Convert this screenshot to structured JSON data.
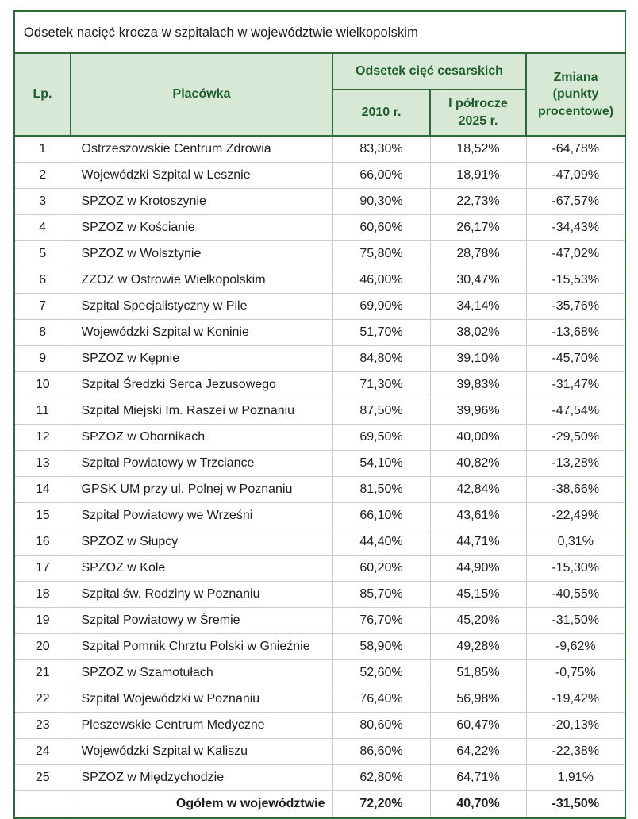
{
  "title": "Odsetek nacięć krocza w szpitalach w województwie wielkopolskim",
  "table": {
    "headers": {
      "lp": "Lp.",
      "placowka": "Placówka",
      "group": "Odsetek cięć cesarskich",
      "y2010": "2010 r.",
      "y2025": "I półrocze 2025 r.",
      "zmiana": "Zmiana (punkty procentowe)"
    }
  },
  "chart_data": {
    "type": "table",
    "title": "Odsetek nacięć krocza w szpitalach w województwie wielkopolskim",
    "column_group": {
      "label": "Odsetek cięć cesarskich",
      "spans": [
        "2010 r.",
        "I półrocze 2025 r."
      ]
    },
    "columns": [
      "Lp.",
      "Placówka",
      "2010 r.",
      "I półrocze 2025 r.",
      "Zmiana (punkty procentowe)"
    ],
    "rows": [
      [
        "1",
        "Ostrzeszowskie Centrum Zdrowia",
        "83,30%",
        "18,52%",
        "-64,78%"
      ],
      [
        "2",
        "Wojewódzki Szpital w Lesznie",
        "66,00%",
        "18,91%",
        "-47,09%"
      ],
      [
        "3",
        "SPZOZ w Krotoszynie",
        "90,30%",
        "22,73%",
        "-67,57%"
      ],
      [
        "4",
        "SPZOZ w Kościanie",
        "60,60%",
        "26,17%",
        "-34,43%"
      ],
      [
        "5",
        "SPZOZ w Wolsztynie",
        "75,80%",
        "28,78%",
        "-47,02%"
      ],
      [
        "6",
        "ZZOZ w Ostrowie Wielkopolskim",
        "46,00%",
        "30,47%",
        "-15,53%"
      ],
      [
        "7",
        "Szpital Specjalistyczny w Pile",
        "69,90%",
        "34,14%",
        "-35,76%"
      ],
      [
        "8",
        "Wojewódzki Szpital w Koninie",
        "51,70%",
        "38,02%",
        "-13,68%"
      ],
      [
        "9",
        "SPZOZ w Kępnie",
        "84,80%",
        "39,10%",
        "-45,70%"
      ],
      [
        "10",
        "Szpital Średzki Serca Jezusowego",
        "71,30%",
        "39,83%",
        "-31,47%"
      ],
      [
        "11",
        "Szpital Miejski Im. Raszei w Poznaniu",
        "87,50%",
        "39,96%",
        "-47,54%"
      ],
      [
        "12",
        "SPZOZ w Obornikach",
        "69,50%",
        "40,00%",
        "-29,50%"
      ],
      [
        "13",
        "Szpital Powiatowy w Trzciance",
        "54,10%",
        "40,82%",
        "-13,28%"
      ],
      [
        "14",
        "GPSK UM przy ul. Polnej w Poznaniu",
        "81,50%",
        "42,84%",
        "-38,66%"
      ],
      [
        "15",
        "Szpital Powiatowy we Wrześni",
        "66,10%",
        "43,61%",
        "-22,49%"
      ],
      [
        "16",
        "SPZOZ w Słupcy",
        "44,40%",
        "44,71%",
        "0,31%"
      ],
      [
        "17",
        "SPZOZ w Kole",
        "60,20%",
        "44,90%",
        "-15,30%"
      ],
      [
        "18",
        "Szpital św. Rodziny w Poznaniu",
        "85,70%",
        "45,15%",
        "-40,55%"
      ],
      [
        "19",
        "Szpital Powiatowy w Śremie",
        "76,70%",
        "45,20%",
        "-31,50%"
      ],
      [
        "20",
        "Szpital Pomnik Chrztu Polski w Gnieźnie",
        "58,90%",
        "49,28%",
        "-9,62%"
      ],
      [
        "21",
        "SPZOZ w Szamotułach",
        "52,60%",
        "51,85%",
        "-0,75%"
      ],
      [
        "22",
        "Szpital Wojewódzki w Poznaniu",
        "76,40%",
        "56,98%",
        "-19,42%"
      ],
      [
        "23",
        "Pleszewskie Centrum Medyczne",
        "80,60%",
        "60,47%",
        "-20,13%"
      ],
      [
        "24",
        "Wojewódzki Szpital w Kaliszu",
        "86,60%",
        "64,22%",
        "-22,38%"
      ],
      [
        "25",
        "SPZOZ w Międzychodzie",
        "62,80%",
        "64,71%",
        "1,91%"
      ]
    ],
    "total_row": [
      "",
      "Ogółem w województwie",
      "72,20%",
      "40,70%",
      "-31,50%"
    ]
  },
  "colors": {
    "border_green": "#2d6a39",
    "header_bg": "#d7e9d6",
    "header_text": "#1d5c2b",
    "row_divider": "#cbcbcb",
    "body_text": "#1d1d1d",
    "page_bg": "#ffffff"
  }
}
